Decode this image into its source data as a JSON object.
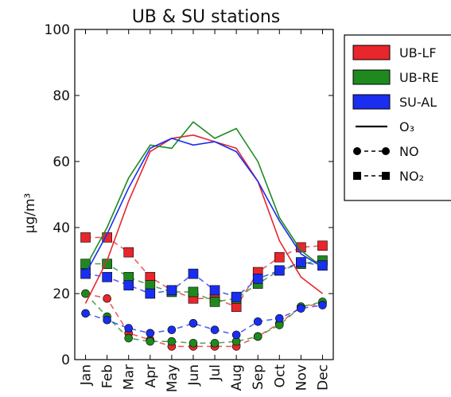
{
  "chart_data": {
    "type": "line",
    "title": "UB & SU stations",
    "ylabel": "µg/m³",
    "xlabel": "",
    "ylim": [
      0,
      100
    ],
    "yticks": [
      0,
      20,
      40,
      60,
      80,
      100
    ],
    "categories": [
      "Jan",
      "Feb",
      "Mar",
      "Apr",
      "May",
      "Jun",
      "Jul",
      "Aug",
      "Sep",
      "Oct",
      "Nov",
      "Dec"
    ],
    "grid": false,
    "legend_placement": "right, outside plot",
    "stations": [
      {
        "name": "UB-LF",
        "color": "#e8262b"
      },
      {
        "name": "UB-RE",
        "color": "#1e8a1e"
      },
      {
        "name": "SU-AL",
        "color": "#1a2ef0"
      }
    ],
    "pollutants": [
      {
        "name": "O₃",
        "style": "solid",
        "marker": "none"
      },
      {
        "name": "NO",
        "style": "dashed",
        "marker": "circle"
      },
      {
        "name": "NO₂",
        "style": "dashed",
        "marker": "square"
      }
    ],
    "series": [
      {
        "station": "UB-LF",
        "pollutant": "O3",
        "values": [
          17,
          30,
          48,
          63,
          67,
          68,
          66,
          64,
          54,
          36,
          25,
          20
        ]
      },
      {
        "station": "UB-RE",
        "pollutant": "O3",
        "values": [
          28,
          40,
          55,
          65,
          64,
          72,
          67,
          70,
          60,
          43,
          33,
          28
        ]
      },
      {
        "station": "SU-AL",
        "pollutant": "O3",
        "values": [
          26,
          38,
          52,
          64,
          67,
          65,
          66,
          63,
          54,
          42,
          32,
          28
        ]
      },
      {
        "station": "UB-LF",
        "pollutant": "NO",
        "values": [
          20,
          18.5,
          8,
          6,
          4,
          4,
          4,
          4,
          7,
          11,
          16,
          17
        ]
      },
      {
        "station": "UB-RE",
        "pollutant": "NO",
        "values": [
          20,
          13,
          6.5,
          5.5,
          5.5,
          5,
          5,
          5.5,
          7,
          10.5,
          16,
          17.5
        ]
      },
      {
        "station": "SU-AL",
        "pollutant": "NO",
        "values": [
          14,
          12,
          9.5,
          8,
          9,
          11,
          9,
          7.5,
          11.5,
          12.5,
          15.5,
          16.5
        ]
      },
      {
        "station": "UB-LF",
        "pollutant": "NO2",
        "values": [
          37,
          37,
          32.5,
          25,
          21,
          18.5,
          18.5,
          16,
          26.5,
          31,
          34,
          34.5
        ]
      },
      {
        "station": "UB-RE",
        "pollutant": "NO2",
        "values": [
          29,
          29,
          25,
          22.5,
          20.5,
          20.5,
          17.5,
          18.5,
          23,
          27,
          29,
          30
        ]
      },
      {
        "station": "SU-AL",
        "pollutant": "NO2",
        "values": [
          26,
          25,
          22.5,
          20,
          21,
          26,
          21,
          19,
          24.5,
          27,
          29.5,
          28.5
        ]
      }
    ]
  }
}
